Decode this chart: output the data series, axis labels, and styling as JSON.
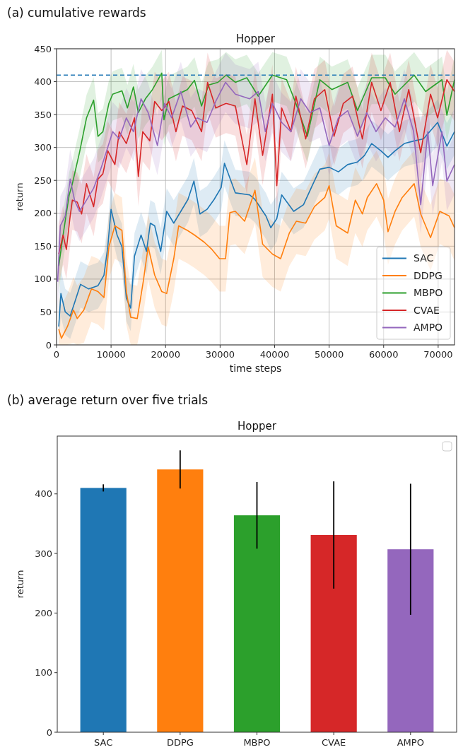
{
  "chart_data": [
    {
      "type": "line",
      "title": "(a) cumulative rewards",
      "subtitle": "Hopper",
      "xlabel": "time steps",
      "ylabel": "return",
      "xlim": [
        0,
        73000
      ],
      "xticks": [
        0,
        10000,
        20000,
        30000,
        40000,
        50000,
        60000,
        70000
      ],
      "ylim": [
        0,
        450
      ],
      "yticks": [
        0,
        50,
        100,
        150,
        200,
        250,
        300,
        350,
        400,
        450
      ],
      "grid": true,
      "legend": "bottom right",
      "line_style": "solid",
      "marker": "none",
      "ref_lines": [
        {
          "axis": "y",
          "value": 410,
          "color": "#1f77b4",
          "line_style": "dashed"
        }
      ],
      "series": [
        {
          "name": "SAC",
          "color": "#1f77b4",
          "x": [
            400,
            800,
            1600,
            2500,
            3300,
            4400,
            5900,
            7600,
            8700,
            9400,
            10000,
            11100,
            12000,
            12800,
            13600,
            14300,
            15500,
            16500,
            17200,
            18000,
            19100,
            20200,
            21500,
            22800,
            24100,
            25200,
            26300,
            27600,
            28900,
            30200,
            30800,
            32800,
            35400,
            36400,
            38400,
            39300,
            40400,
            41300,
            43500,
            45300,
            46900,
            48300,
            50000,
            51700,
            53400,
            55200,
            56500,
            57800,
            59500,
            60800,
            62100,
            63800,
            65600,
            67300,
            69900,
            71600,
            73000
          ],
          "values": [
            28,
            78,
            50,
            44,
            64,
            92,
            85,
            90,
            106,
            149,
            206,
            167,
            149,
            71,
            56,
            135,
            167,
            142,
            185,
            181,
            142,
            203,
            185,
            203,
            221,
            249,
            199,
            206,
            221,
            239,
            276,
            231,
            228,
            221,
            196,
            178,
            192,
            228,
            203,
            213,
            242,
            267,
            270,
            263,
            274,
            278,
            288,
            306,
            295,
            285,
            295,
            306,
            310,
            313,
            338,
            302,
            324
          ],
          "lower": [
            0,
            43,
            15,
            9,
            29,
            57,
            50,
            55,
            71,
            114,
            171,
            132,
            114,
            36,
            21,
            100,
            132,
            107,
            150,
            146,
            107,
            168,
            150,
            168,
            186,
            214,
            164,
            171,
            186,
            204,
            241,
            196,
            193,
            186,
            161,
            143,
            157,
            193,
            168,
            178,
            207,
            232,
            235,
            228,
            239,
            243,
            253,
            271,
            260,
            250,
            260,
            271,
            275,
            278,
            303,
            267,
            289
          ],
          "upper": [
            63,
            113,
            85,
            79,
            99,
            127,
            120,
            125,
            141,
            184,
            241,
            202,
            184,
            106,
            91,
            170,
            202,
            177,
            220,
            216,
            177,
            238,
            220,
            238,
            256,
            284,
            234,
            241,
            256,
            274,
            311,
            266,
            263,
            256,
            231,
            213,
            227,
            263,
            238,
            248,
            277,
            302,
            305,
            298,
            309,
            313,
            323,
            341,
            330,
            320,
            330,
            341,
            345,
            348,
            373,
            337,
            359
          ]
        },
        {
          "name": "DDPG",
          "color": "#ff7f0e",
          "x": [
            400,
            900,
            2000,
            3100,
            3800,
            5000,
            6400,
            7600,
            8700,
            9600,
            10700,
            12000,
            12800,
            13600,
            14800,
            15900,
            16800,
            18000,
            19300,
            20200,
            21500,
            22400,
            24000,
            25300,
            27100,
            28400,
            29900,
            31000,
            31800,
            32800,
            34500,
            36400,
            37800,
            39600,
            41100,
            42700,
            44000,
            45700,
            47300,
            49200,
            50000,
            51300,
            53400,
            54800,
            56100,
            57000,
            58700,
            60000,
            60800,
            62100,
            63400,
            65600,
            66800,
            68600,
            70300,
            72000,
            73000
          ],
          "values": [
            24,
            10,
            28,
            53,
            40,
            53,
            85,
            81,
            72,
            149,
            181,
            174,
            81,
            42,
            40,
            96,
            149,
            106,
            81,
            78,
            131,
            181,
            174,
            167,
            156,
            146,
            131,
            131,
            201,
            203,
            188,
            235,
            153,
            138,
            131,
            170,
            188,
            185,
            210,
            224,
            242,
            181,
            170,
            220,
            199,
            224,
            245,
            220,
            172,
            203,
            224,
            245,
            199,
            163,
            203,
            196,
            178
          ],
          "lower": [
            0,
            0,
            0,
            3,
            0,
            3,
            35,
            31,
            22,
            99,
            131,
            124,
            31,
            0,
            0,
            46,
            99,
            56,
            31,
            28,
            81,
            131,
            124,
            117,
            106,
            96,
            81,
            81,
            151,
            153,
            138,
            185,
            103,
            88,
            81,
            120,
            138,
            135,
            160,
            174,
            192,
            131,
            120,
            170,
            149,
            174,
            195,
            170,
            122,
            153,
            174,
            195,
            149,
            113,
            153,
            146,
            128
          ],
          "upper": [
            74,
            60,
            78,
            103,
            90,
            103,
            135,
            131,
            122,
            199,
            231,
            224,
            131,
            92,
            90,
            146,
            199,
            156,
            131,
            128,
            181,
            231,
            224,
            217,
            206,
            196,
            181,
            181,
            251,
            253,
            238,
            285,
            203,
            188,
            181,
            220,
            238,
            235,
            260,
            274,
            292,
            231,
            220,
            270,
            249,
            274,
            295,
            270,
            222,
            253,
            274,
            295,
            249,
            213,
            253,
            246,
            228
          ]
        },
        {
          "name": "MBPO",
          "color": "#2ca02c",
          "x": [
            400,
            1200,
            2300,
            2900,
            4200,
            5500,
            6800,
            7600,
            8500,
            9600,
            10300,
            12000,
            13000,
            14100,
            15000,
            16300,
            17600,
            19300,
            19700,
            20600,
            22300,
            24000,
            25300,
            26600,
            27900,
            29600,
            31100,
            32800,
            34900,
            37000,
            39600,
            42200,
            43900,
            46000,
            48300,
            50500,
            53400,
            55200,
            57800,
            60300,
            62100,
            65600,
            67700,
            70700,
            71600,
            73000
          ],
          "values": [
            120,
            167,
            227,
            245,
            292,
            345,
            372,
            317,
            324,
            367,
            381,
            386,
            360,
            392,
            353,
            374,
            388,
            413,
            342,
            374,
            381,
            388,
            402,
            363,
            395,
            399,
            410,
            399,
            406,
            378,
            410,
            403,
            367,
            317,
            403,
            388,
            399,
            356,
            406,
            406,
            381,
            410,
            385,
            403,
            349,
            403
          ],
          "lower": [
            80,
            127,
            187,
            205,
            252,
            305,
            332,
            277,
            284,
            327,
            341,
            346,
            320,
            352,
            313,
            334,
            348,
            373,
            302,
            334,
            341,
            348,
            362,
            323,
            355,
            359,
            370,
            359,
            366,
            338,
            370,
            363,
            327,
            277,
            363,
            348,
            359,
            316,
            366,
            366,
            341,
            370,
            345,
            363,
            309,
            363
          ],
          "upper": [
            155,
            202,
            262,
            280,
            327,
            380,
            407,
            352,
            359,
            402,
            416,
            421,
            395,
            427,
            388,
            409,
            423,
            448,
            377,
            409,
            416,
            423,
            437,
            398,
            430,
            434,
            445,
            434,
            441,
            413,
            445,
            438,
            402,
            352,
            438,
            423,
            434,
            391,
            441,
            441,
            416,
            445,
            420,
            438,
            384,
            438
          ]
        },
        {
          "name": "CVAE",
          "color": "#d62728",
          "x": [
            400,
            1200,
            1800,
            2500,
            2900,
            3800,
            4600,
            5500,
            6800,
            7600,
            8500,
            9400,
            10700,
            11500,
            12800,
            14300,
            15000,
            15800,
            17100,
            18000,
            19300,
            20600,
            21900,
            23100,
            24800,
            26600,
            27700,
            29200,
            31100,
            32800,
            34900,
            36400,
            37800,
            39600,
            40400,
            41300,
            43000,
            43900,
            45700,
            47300,
            49200,
            50900,
            52600,
            54300,
            56100,
            57800,
            59500,
            61200,
            62900,
            64600,
            66800,
            68600,
            69900,
            71600,
            73000
          ],
          "values": [
            138,
            167,
            145,
            196,
            220,
            217,
            199,
            245,
            210,
            252,
            260,
            295,
            274,
            324,
            306,
            345,
            256,
            324,
            310,
            370,
            356,
            370,
            324,
            363,
            356,
            324,
            399,
            360,
            367,
            363,
            274,
            374,
            288,
            381,
            242,
            360,
            324,
            378,
            313,
            374,
            388,
            317,
            367,
            378,
            313,
            399,
            356,
            399,
            324,
            388,
            292,
            381,
            345,
            403,
            385
          ],
          "lower": [
            93,
            122,
            100,
            151,
            175,
            172,
            154,
            200,
            165,
            207,
            215,
            250,
            229,
            279,
            261,
            300,
            211,
            279,
            265,
            325,
            311,
            325,
            279,
            318,
            311,
            279,
            354,
            315,
            322,
            318,
            229,
            329,
            243,
            336,
            197,
            315,
            279,
            333,
            268,
            329,
            343,
            272,
            322,
            333,
            268,
            354,
            311,
            354,
            279,
            343,
            247,
            336,
            300,
            358,
            340
          ],
          "upper": [
            183,
            212,
            190,
            241,
            265,
            262,
            244,
            290,
            255,
            297,
            305,
            340,
            319,
            369,
            351,
            390,
            301,
            369,
            355,
            415,
            401,
            415,
            369,
            408,
            401,
            369,
            444,
            405,
            412,
            408,
            319,
            419,
            333,
            426,
            287,
            405,
            369,
            423,
            358,
            419,
            433,
            362,
            412,
            423,
            358,
            444,
            401,
            444,
            369,
            433,
            337,
            426,
            390,
            448,
            430
          ]
        },
        {
          "name": "AMPO",
          "color": "#9467bd",
          "x": [
            200,
            700,
            1600,
            2500,
            3300,
            4200,
            5500,
            6800,
            8100,
            9200,
            10300,
            11500,
            12800,
            14100,
            15500,
            16800,
            18500,
            19800,
            21100,
            22800,
            24600,
            25800,
            27600,
            29200,
            31000,
            32800,
            35400,
            37000,
            38300,
            39600,
            41300,
            43000,
            44800,
            46500,
            48300,
            50000,
            51700,
            53400,
            55200,
            56900,
            58600,
            60300,
            62100,
            63800,
            65500,
            66800,
            68100,
            69000,
            70700,
            71600,
            73000
          ],
          "values": [
            96,
            181,
            196,
            252,
            220,
            203,
            220,
            238,
            267,
            295,
            324,
            313,
            345,
            324,
            374,
            353,
            303,
            367,
            345,
            385,
            331,
            345,
            338,
            370,
            399,
            381,
            374,
            385,
            324,
            367,
            338,
            324,
            374,
            353,
            360,
            303,
            345,
            356,
            317,
            353,
            324,
            345,
            331,
            374,
            324,
            213,
            324,
            242,
            324,
            249,
            274
          ],
          "lower": [
            51,
            136,
            151,
            207,
            175,
            158,
            175,
            193,
            222,
            250,
            279,
            268,
            300,
            279,
            329,
            308,
            258,
            322,
            300,
            340,
            286,
            300,
            293,
            325,
            354,
            336,
            329,
            340,
            279,
            322,
            293,
            279,
            329,
            308,
            315,
            258,
            300,
            311,
            272,
            308,
            279,
            300,
            286,
            329,
            279,
            168,
            279,
            197,
            279,
            204,
            229
          ],
          "upper": [
            141,
            226,
            241,
            297,
            265,
            248,
            265,
            283,
            312,
            340,
            369,
            358,
            390,
            369,
            419,
            398,
            348,
            412,
            390,
            430,
            376,
            390,
            383,
            415,
            444,
            426,
            419,
            430,
            369,
            412,
            383,
            369,
            419,
            398,
            405,
            348,
            390,
            401,
            362,
            398,
            369,
            390,
            376,
            419,
            369,
            258,
            369,
            287,
            369,
            294,
            319
          ]
        }
      ]
    },
    {
      "type": "bar",
      "title": "(b) average return over five trials",
      "subtitle": "Hopper",
      "ylabel": "return",
      "categories": [
        "SAC",
        "DDPG",
        "MBPO",
        "CVAE",
        "AMPO"
      ],
      "values": [
        410,
        441,
        364,
        331,
        307
      ],
      "errors": [
        6,
        32,
        56,
        90,
        110
      ],
      "colors": [
        "#1f77b4",
        "#ff7f0e",
        "#2ca02c",
        "#d62728",
        "#9467bd"
      ],
      "ylim": [
        0,
        497
      ],
      "yticks": [
        0,
        100,
        200,
        300,
        400
      ],
      "grid": false
    }
  ]
}
